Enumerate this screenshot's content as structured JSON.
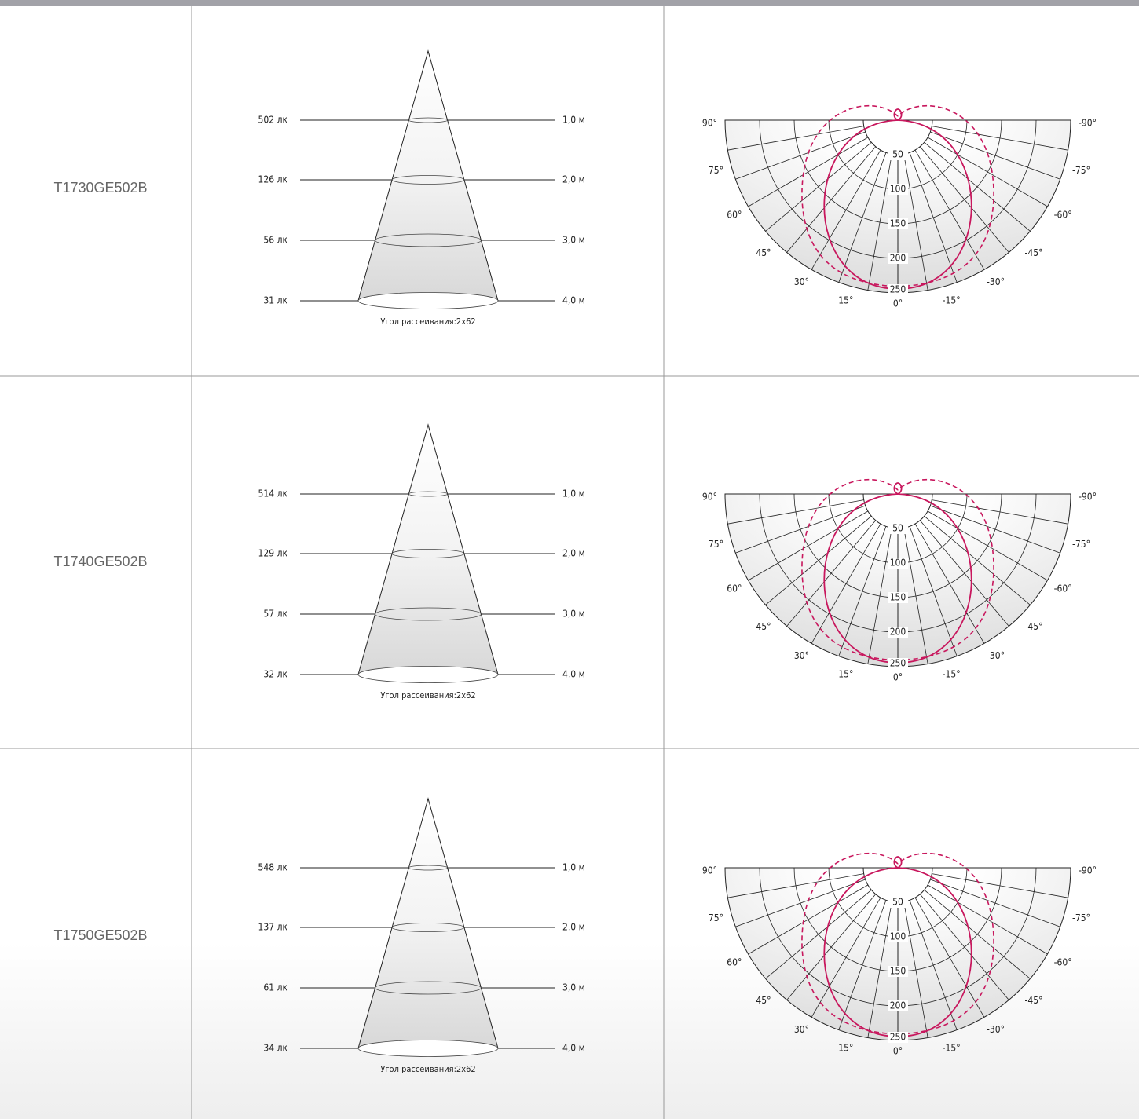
{
  "rows": [
    {
      "model": "T1730GE502B",
      "cone": {
        "lux": [
          "502 лк",
          "126 лк",
          "56 лк",
          "31 лк"
        ],
        "distances": [
          "1,0 м",
          "2,0 м",
          "3,0 м",
          "4,0 м"
        ],
        "angle": "Угол рассеивания:2x62"
      },
      "polar": {
        "angles": [
          "90°",
          "75°",
          "60°",
          "45°",
          "30°",
          "15°",
          "0°",
          "-15°",
          "-30°",
          "-45°",
          "-60°",
          "-75°",
          "-90°"
        ],
        "radii": [
          "50",
          "100",
          "150",
          "200",
          "250"
        ]
      }
    },
    {
      "model": "T1740GE502B",
      "cone": {
        "lux": [
          "514 лк",
          "129 лк",
          "57 лк",
          "32 лк"
        ],
        "distances": [
          "1,0 м",
          "2,0 м",
          "3,0 м",
          "4,0 м"
        ],
        "angle": "Угол рассеивания:2x62"
      },
      "polar": {
        "angles": [
          "90°",
          "75°",
          "60°",
          "45°",
          "30°",
          "15°",
          "0°",
          "-15°",
          "-30°",
          "-45°",
          "-60°",
          "-75°",
          "-90°"
        ],
        "radii": [
          "50",
          "100",
          "150",
          "200",
          "250"
        ]
      }
    },
    {
      "model": "T1750GE502B",
      "cone": {
        "lux": [
          "548 лк",
          "137 лк",
          "61 лк",
          "34 лк"
        ],
        "distances": [
          "1,0 м",
          "2,0 м",
          "3,0 м",
          "4,0 м"
        ],
        "angle": "Угол рассеивания:2x62"
      },
      "polar": {
        "angles": [
          "90°",
          "75°",
          "60°",
          "45°",
          "30°",
          "15°",
          "0°",
          "-15°",
          "-30°",
          "-45°",
          "-60°",
          "-75°",
          "-90°"
        ],
        "radii": [
          "50",
          "100",
          "150",
          "200",
          "250"
        ]
      }
    }
  ]
}
